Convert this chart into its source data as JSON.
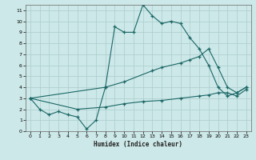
{
  "xlabel": "Humidex (Indice chaleur)",
  "bg_color": "#cde8e8",
  "grid_color": "#aacccc",
  "line_color": "#1a6666",
  "xlim": [
    -0.5,
    23.5
  ],
  "ylim": [
    0,
    11.5
  ],
  "xticks": [
    0,
    1,
    2,
    3,
    4,
    5,
    6,
    7,
    8,
    9,
    10,
    11,
    12,
    13,
    14,
    15,
    16,
    17,
    18,
    19,
    20,
    21,
    22,
    23
  ],
  "yticks": [
    0,
    1,
    2,
    3,
    4,
    5,
    6,
    7,
    8,
    9,
    10,
    11
  ],
  "lines": [
    {
      "x": [
        0,
        1,
        2,
        3,
        4,
        5,
        6,
        7,
        8,
        9,
        10,
        11,
        12,
        13,
        14,
        15,
        16,
        17,
        18,
        19,
        20,
        21,
        22,
        23
      ],
      "y": [
        3,
        2,
        1.5,
        1.8,
        1.5,
        1.3,
        0.2,
        1.0,
        4.0,
        9.5,
        9.0,
        9.0,
        11.5,
        10.5,
        9.8,
        10.0,
        9.8,
        8.5,
        7.5,
        6.0,
        4.0,
        3.2,
        3.5,
        4.0
      ]
    },
    {
      "x": [
        0,
        8,
        10,
        13,
        14,
        16,
        17,
        18,
        19,
        20,
        21,
        22,
        23
      ],
      "y": [
        3,
        4.0,
        4.5,
        5.5,
        5.8,
        6.2,
        6.5,
        6.8,
        7.5,
        5.8,
        4.0,
        3.5,
        4.0
      ]
    },
    {
      "x": [
        0,
        5,
        8,
        10,
        12,
        14,
        16,
        18,
        19,
        20,
        21,
        22,
        23
      ],
      "y": [
        3,
        2.0,
        2.2,
        2.5,
        2.7,
        2.8,
        3.0,
        3.2,
        3.3,
        3.5,
        3.5,
        3.2,
        3.8
      ]
    }
  ]
}
